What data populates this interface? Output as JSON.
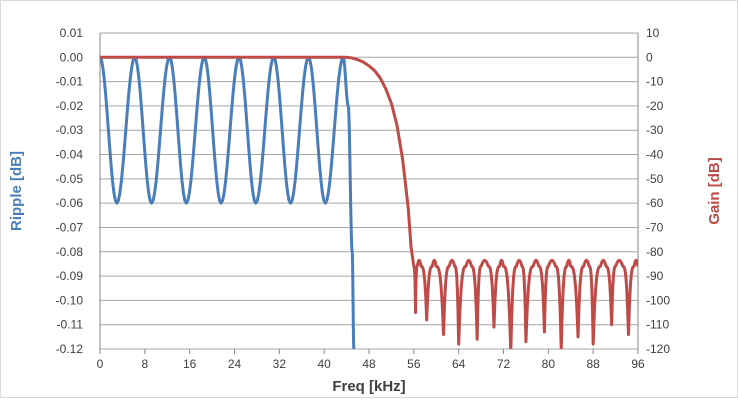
{
  "chart_data": {
    "type": "line",
    "title": "",
    "xlabel": "Freq [kHz]",
    "ylabel_left": "Ripple [dB]",
    "ylabel_right": "Gain [dB]",
    "grid": true,
    "legend": "none",
    "x_range": [
      0,
      96
    ],
    "x_ticks": [
      0,
      8,
      16,
      24,
      32,
      40,
      48,
      56,
      64,
      72,
      80,
      88,
      96
    ],
    "y_left_range": [
      -0.12,
      0.01
    ],
    "y_left_ticks": [
      "0.01",
      "0.00",
      "-0.01",
      "-0.02",
      "-0.03",
      "-0.04",
      "-0.05",
      "-0.06",
      "-0.07",
      "-0.08",
      "-0.09",
      "-0.10",
      "-0.11",
      "-0.12"
    ],
    "y_right_range": [
      -120,
      10
    ],
    "y_right_ticks": [
      "10",
      "0",
      "-10",
      "-20",
      "-30",
      "-40",
      "-50",
      "-60",
      "-70",
      "-80",
      "-90",
      "-100",
      "-110",
      "-120"
    ],
    "colors": {
      "ripple": "#4a7ebb",
      "gain": "#be4b48",
      "grid": "#a6a6a6",
      "axis_title_left": "#4a7ebb",
      "axis_title_right": "#be4b48"
    },
    "series": [
      {
        "axis": "left",
        "color": "#4a7ebb",
        "x": [
          0,
          3.0,
          6.2,
          9.2,
          12.4,
          15.4,
          18.6,
          21.6,
          24.8,
          27.8,
          31.0,
          34.0,
          37.2,
          40.2,
          43.4,
          44.3,
          45.0,
          45.3
        ],
        "y": [
          0.0,
          -0.06,
          0.0,
          -0.06,
          0.0,
          -0.06,
          0.0,
          -0.06,
          0.0,
          -0.06,
          0.0,
          -0.06,
          0.0,
          -0.06,
          0.0,
          -0.02,
          -0.08,
          -0.12
        ]
      },
      {
        "axis": "right",
        "color": "#be4b48",
        "x": [
          0,
          10,
          20,
          30,
          40,
          44,
          45,
          46,
          47,
          48,
          49,
          50,
          51,
          52,
          53,
          54,
          55,
          55.5,
          56.0,
          56.3,
          56.6,
          57.3,
          58.3,
          59.3,
          60.0,
          61.3,
          62.3,
          63.3,
          64.0,
          65.3,
          66.3,
          67.3,
          68.0,
          69.3,
          70.3,
          71.3,
          72.0,
          73.3,
          74.3,
          75.3,
          76.0,
          77.3,
          78.3,
          79.3,
          80.0,
          81.3,
          82.3,
          83.3,
          84.0,
          85.3,
          86.3,
          87.3,
          88.0,
          89.3,
          90.3,
          91.3,
          92.0,
          93.3,
          94.3,
          95.3,
          96.0
        ],
        "y": [
          0,
          0,
          0,
          0,
          0,
          0,
          -0.3,
          -1,
          -2,
          -3.5,
          -5.5,
          -8.5,
          -13,
          -19,
          -28,
          -42,
          -62,
          -78,
          -86,
          -105,
          -86,
          -86,
          -108,
          -86,
          -86,
          -114,
          -86,
          -86,
          -118,
          -86,
          -86,
          -116,
          -86,
          -86,
          -111,
          -86,
          -86,
          -121,
          -86,
          -86,
          -117,
          -86,
          -86,
          -113,
          -86,
          -86,
          -120,
          -86,
          -86,
          -115,
          -86,
          -86,
          -118,
          -86,
          -86,
          -110,
          -86,
          -86,
          -114,
          -86,
          -86
        ]
      }
    ]
  }
}
